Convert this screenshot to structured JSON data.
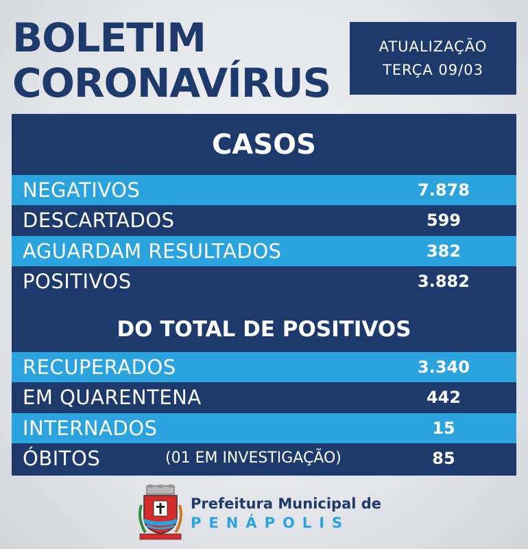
{
  "header": {
    "title_line1": "BOLETIM",
    "title_line2": "CORONAVÍRUS",
    "update_line1": "ATUALIZAÇÃO",
    "update_line2": "TERÇA 09/03"
  },
  "colors": {
    "navy": "#1e3a6c",
    "light_blue": "#2aa3de"
  },
  "cases": {
    "heading": "CASOS",
    "rows": [
      {
        "label": "NEGATIVOS",
        "value": "7.878"
      },
      {
        "label": "DESCARTADOS",
        "value": "599"
      },
      {
        "label": "AGUARDAM RESULTADOS",
        "value": "382"
      },
      {
        "label": "POSITIVOS",
        "value": "3.882"
      }
    ]
  },
  "positives": {
    "heading": "DO TOTAL DE POSITIVOS",
    "rows": [
      {
        "label": "RECUPERADOS",
        "value": "3.340"
      },
      {
        "label": "EM QUARENTENA",
        "value": "442"
      },
      {
        "label": "INTERNADOS",
        "value": "15"
      },
      {
        "label": "ÓBITOS",
        "note": "(01 EM INVESTIGAÇÃO)",
        "value": "85"
      }
    ]
  },
  "footer": {
    "org_line1": "Prefeitura Municipal de",
    "org_line2": "PENÁPOLIS",
    "crest_icon": "municipal-coat-of-arms-icon"
  }
}
